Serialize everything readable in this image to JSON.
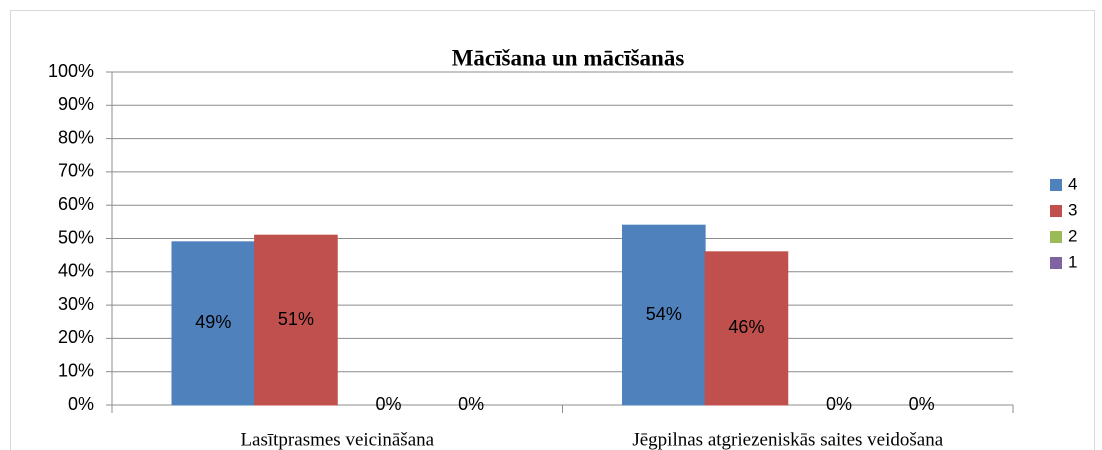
{
  "chart_data": {
    "type": "bar",
    "title": "Mācīšana un mācīšanās",
    "categories": [
      "Lasītprasmes veicināšana",
      "Jēgpilnas atgriezeniskās saites veidošana"
    ],
    "series": [
      {
        "name": "4",
        "color": "#4f81bd",
        "values": [
          49,
          54
        ],
        "value_labels": [
          "49%",
          "54%"
        ]
      },
      {
        "name": "3",
        "color": "#c0504d",
        "values": [
          51,
          46
        ],
        "value_labels": [
          "51%",
          "46%"
        ]
      },
      {
        "name": "2",
        "color": "#9bbb59",
        "values": [
          0,
          0
        ],
        "value_labels": [
          "0%",
          "0%"
        ]
      },
      {
        "name": "1",
        "color": "#8064a2",
        "values": [
          0,
          0
        ],
        "value_labels": [
          "0%",
          "0%"
        ]
      }
    ],
    "ylim": [
      0,
      100
    ],
    "yticks": [
      {
        "value": 0,
        "label": "0%"
      },
      {
        "value": 10,
        "label": "10%"
      },
      {
        "value": 20,
        "label": "20%"
      },
      {
        "value": 30,
        "label": "30%"
      },
      {
        "value": 40,
        "label": "40%"
      },
      {
        "value": 50,
        "label": "50%"
      },
      {
        "value": 60,
        "label": "60%"
      },
      {
        "value": 70,
        "label": "70%"
      },
      {
        "value": 80,
        "label": "80%"
      },
      {
        "value": 90,
        "label": "90%"
      },
      {
        "value": 100,
        "label": "100%"
      }
    ],
    "grid": true,
    "legend": "right"
  }
}
